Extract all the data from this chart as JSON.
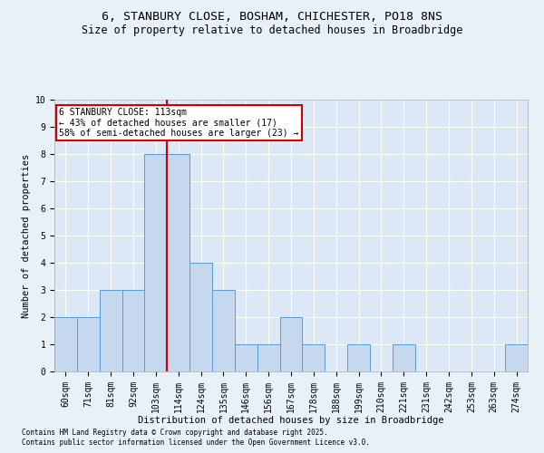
{
  "title1": "6, STANBURY CLOSE, BOSHAM, CHICHESTER, PO18 8NS",
  "title2": "Size of property relative to detached houses in Broadbridge",
  "xlabel": "Distribution of detached houses by size in Broadbridge",
  "ylabel": "Number of detached properties",
  "categories": [
    "60sqm",
    "71sqm",
    "81sqm",
    "92sqm",
    "103sqm",
    "114sqm",
    "124sqm",
    "135sqm",
    "146sqm",
    "156sqm",
    "167sqm",
    "178sqm",
    "188sqm",
    "199sqm",
    "210sqm",
    "221sqm",
    "231sqm",
    "242sqm",
    "253sqm",
    "263sqm",
    "274sqm"
  ],
  "values": [
    2,
    2,
    3,
    3,
    8,
    8,
    4,
    3,
    1,
    1,
    2,
    1,
    0,
    1,
    0,
    1,
    0,
    0,
    0,
    0,
    1
  ],
  "bar_color": "#c5d8ed",
  "bar_edge_color": "#5b9bd5",
  "red_line_x": 4.5,
  "annotation_text": "6 STANBURY CLOSE: 113sqm\n← 43% of detached houses are smaller (17)\n58% of semi-detached houses are larger (23) →",
  "annotation_box_color": "#ffffff",
  "annotation_box_edge": "#cc0000",
  "footnote1": "Contains HM Land Registry data © Crown copyright and database right 2025.",
  "footnote2": "Contains public sector information licensed under the Open Government Licence v3.0.",
  "ylim": [
    0,
    10
  ],
  "yticks": [
    0,
    1,
    2,
    3,
    4,
    5,
    6,
    7,
    8,
    9,
    10
  ],
  "bg_color": "#e8f0f8",
  "plot_bg": "#dce8f5",
  "grid_color": "#ffffff",
  "title_fontsize": 9.5,
  "subtitle_fontsize": 8.5,
  "tick_fontsize": 7,
  "label_fontsize": 7.5,
  "annot_fontsize": 7,
  "footnote_fontsize": 5.5
}
